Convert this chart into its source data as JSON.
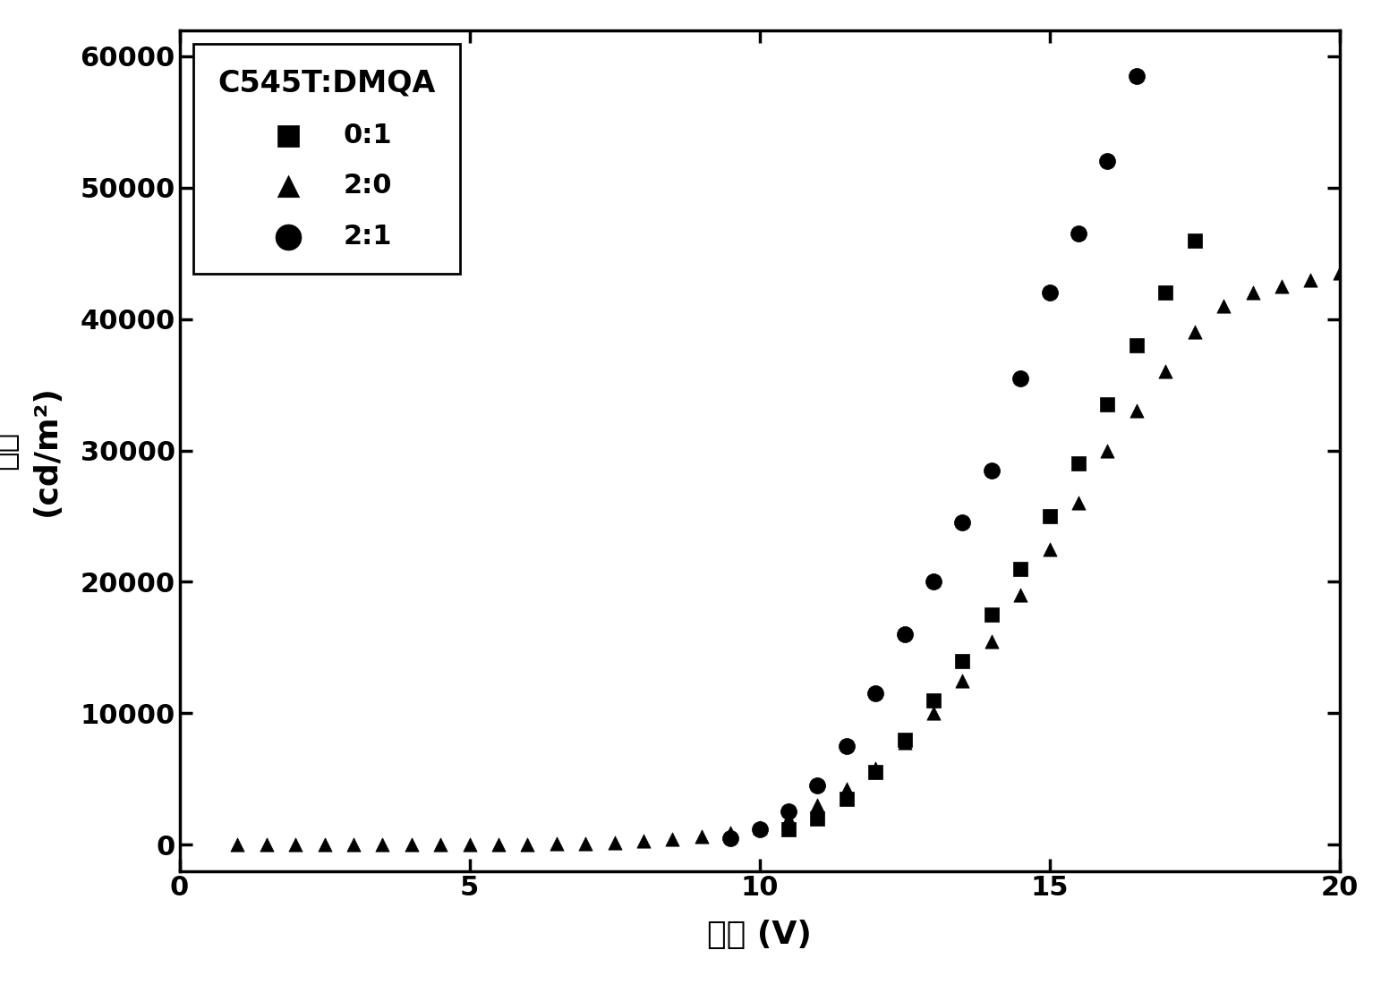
{
  "title": "",
  "xlabel": "电压 (V)",
  "ylabel_line1": "亮度",
  "ylabel_line2": "(cd/m²)",
  "xlim": [
    0,
    20
  ],
  "ylim": [
    -2000,
    62000
  ],
  "yticks": [
    0,
    10000,
    20000,
    30000,
    40000,
    50000,
    60000
  ],
  "xticks": [
    0,
    5,
    10,
    15,
    20
  ],
  "legend_title": "C545T:DMQA",
  "series": [
    {
      "label": "0:1",
      "marker": "s",
      "color": "#000000",
      "markersize": 11,
      "x": [
        10.5,
        11.0,
        11.5,
        12.0,
        12.5,
        13.0,
        13.5,
        14.0,
        14.5,
        15.0,
        15.5,
        16.0,
        16.5,
        17.0,
        17.5
      ],
      "y": [
        1200,
        2000,
        3500,
        5500,
        8000,
        11000,
        14000,
        17500,
        21000,
        25000,
        29000,
        33500,
        38000,
        42000,
        46000
      ]
    },
    {
      "label": "2:0",
      "marker": "^",
      "color": "#000000",
      "markersize": 11,
      "x": [
        1.0,
        1.5,
        2.0,
        2.5,
        3.0,
        3.5,
        4.0,
        4.5,
        5.0,
        5.5,
        6.0,
        6.5,
        7.0,
        7.5,
        8.0,
        8.5,
        9.0,
        9.5,
        10.0,
        10.5,
        11.0,
        11.5,
        12.0,
        12.5,
        13.0,
        13.5,
        14.0,
        14.5,
        15.0,
        15.5,
        16.0,
        16.5,
        17.0,
        17.5,
        18.0,
        18.5,
        19.0,
        19.5,
        20.0
      ],
      "y": [
        0,
        0,
        0,
        0,
        0,
        0,
        0,
        0,
        0,
        0,
        0,
        50,
        100,
        150,
        250,
        400,
        600,
        900,
        1300,
        2000,
        3000,
        4200,
        5800,
        7800,
        10000,
        12500,
        15500,
        19000,
        22500,
        26000,
        30000,
        33000,
        36000,
        39000,
        41000,
        42000,
        42500,
        43000,
        43500
      ]
    },
    {
      "label": "2:1",
      "marker": "o",
      "color": "#000000",
      "markersize": 13,
      "x": [
        9.5,
        10.0,
        10.5,
        11.0,
        11.5,
        12.0,
        12.5,
        13.0,
        13.5,
        14.0,
        14.5,
        15.0,
        15.5,
        16.0,
        16.5
      ],
      "y": [
        500,
        1200,
        2500,
        4500,
        7500,
        11500,
        16000,
        20000,
        24500,
        28500,
        35500,
        42000,
        46500,
        52000,
        58500
      ]
    }
  ],
  "background_color": "#ffffff",
  "font_color": "#000000",
  "tick_fontsize": 22,
  "label_fontsize": 26,
  "legend_fontsize": 22,
  "legend_title_fontsize": 24
}
